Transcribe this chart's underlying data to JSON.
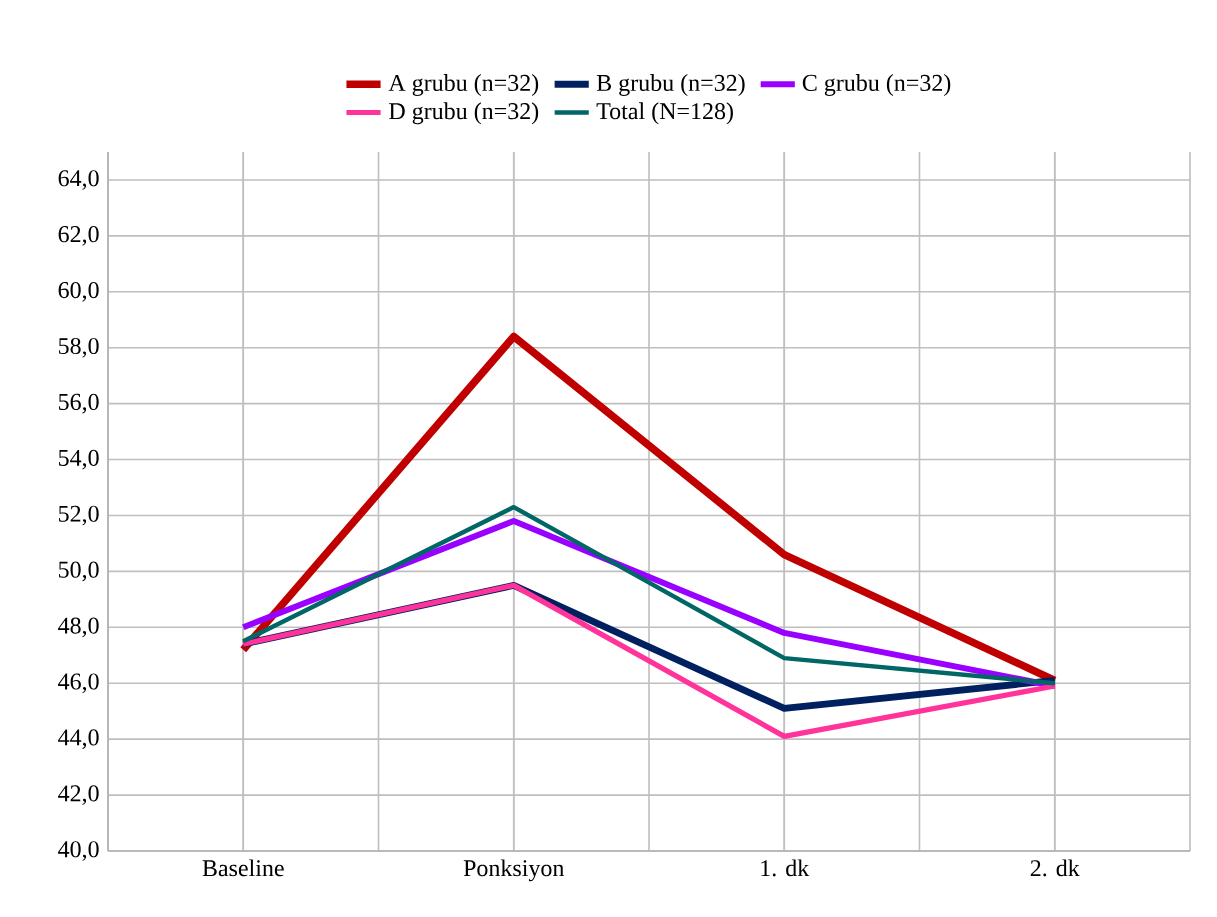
{
  "chart_data": {
    "type": "line",
    "categories": [
      "Baseline",
      "Ponksiyon",
      "1. dk",
      "2. dk"
    ],
    "series": [
      {
        "name": "A grubu (n=32)",
        "color": "#c00000",
        "values": [
          47.2,
          58.4,
          50.6,
          46.1
        ]
      },
      {
        "name": "B grubu (n=32)",
        "color": "#002060",
        "values": [
          47.4,
          49.5,
          45.1,
          46.1
        ]
      },
      {
        "name": "C grubu (n=32)",
        "color": "#9900ff",
        "values": [
          48.0,
          51.8,
          47.8,
          45.9
        ]
      },
      {
        "name": "D grubu (n=32)",
        "color": "#ff3399",
        "values": [
          47.4,
          49.5,
          44.1,
          45.9
        ]
      },
      {
        "name": "Total (N=128)",
        "color": "#006666",
        "values": [
          47.5,
          52.3,
          46.9,
          46.0
        ]
      }
    ],
    "ylim": [
      40,
      65
    ],
    "yticks": [
      {
        "value": 40,
        "label": "40,0"
      },
      {
        "value": 42,
        "label": "42,0"
      },
      {
        "value": 44,
        "label": "44,0"
      },
      {
        "value": 46,
        "label": "46,0"
      },
      {
        "value": 48,
        "label": "48,0"
      },
      {
        "value": 50,
        "label": "50,0"
      },
      {
        "value": 52,
        "label": "52,0"
      },
      {
        "value": 54,
        "label": "54,0"
      },
      {
        "value": 56,
        "label": "56,0"
      },
      {
        "value": 58,
        "label": "58,0"
      },
      {
        "value": 60,
        "label": "60,0"
      },
      {
        "value": 62,
        "label": "62,0"
      },
      {
        "value": 64,
        "label": "64,0"
      }
    ],
    "grid": true,
    "legend": "top",
    "marker": "none",
    "line_style": "solid"
  }
}
